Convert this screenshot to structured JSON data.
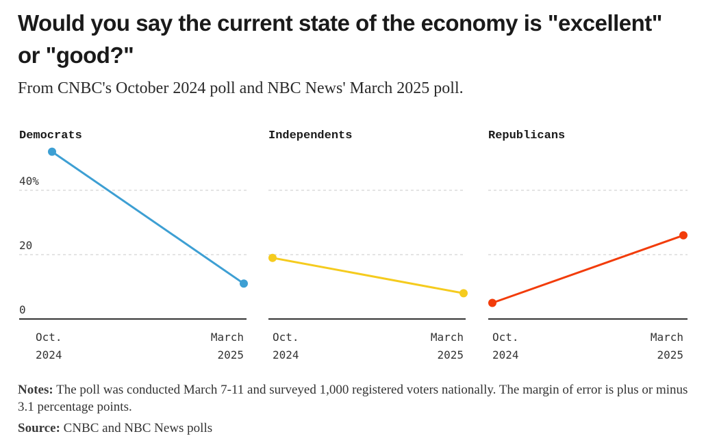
{
  "title": "Would you say the current state of the economy is \"excellent\" or \"good?\"",
  "subtitle": "From CNBC's October 2024 poll and NBC News' March 2025 poll.",
  "notes_label": "Notes:",
  "notes_text": "The poll was conducted March 7-11 and surveyed 1,000 registered voters nationally. The margin of error is plus or minus 3.1 percentage points.",
  "source_label": "Source:",
  "source_text": "CNBC and NBC News polls",
  "chart_data": [
    {
      "type": "line",
      "title": "Democrats",
      "x": [
        "Oct. 2024",
        "March 2025"
      ],
      "x_tick_lines": [
        [
          "Oct.",
          "2024"
        ],
        [
          "March",
          "2025"
        ]
      ],
      "series": [
        {
          "values": [
            52,
            11
          ]
        }
      ],
      "color": "#3d9fd3",
      "ylim": [
        0,
        55
      ],
      "yticks": [
        0,
        20,
        40
      ],
      "ytick_labels": [
        "0",
        "20",
        "40%"
      ],
      "grid": true
    },
    {
      "type": "line",
      "title": "Independents",
      "x": [
        "Oct. 2024",
        "March 2025"
      ],
      "x_tick_lines": [
        [
          "Oct.",
          "2024"
        ],
        [
          "March",
          "2025"
        ]
      ],
      "series": [
        {
          "values": [
            19,
            8
          ]
        }
      ],
      "color": "#f5cb1e",
      "ylim": [
        0,
        55
      ],
      "yticks": [
        0,
        20,
        40
      ],
      "grid": true
    },
    {
      "type": "line",
      "title": "Republicans",
      "x": [
        "Oct. 2024",
        "March 2025"
      ],
      "x_tick_lines": [
        [
          "Oct.",
          "2024"
        ],
        [
          "March",
          "2025"
        ]
      ],
      "series": [
        {
          "values": [
            5,
            26
          ]
        }
      ],
      "color": "#f23c0a",
      "ylim": [
        0,
        55
      ],
      "yticks": [
        0,
        20,
        40
      ],
      "grid": true
    }
  ]
}
